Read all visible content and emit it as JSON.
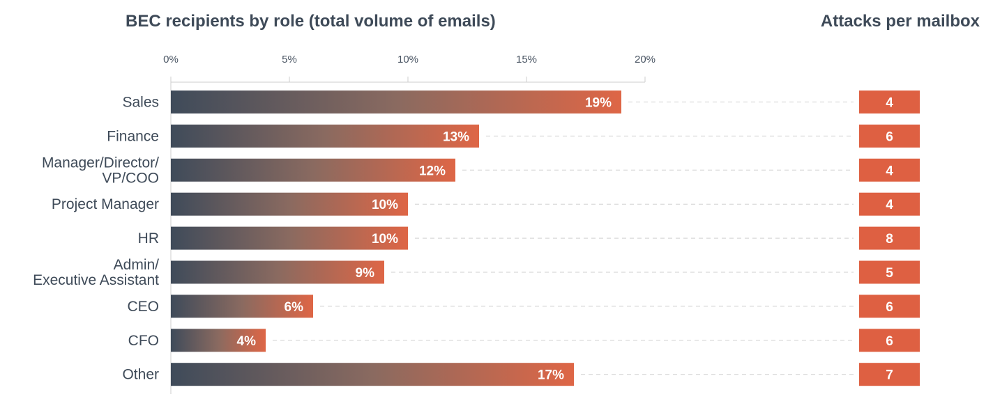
{
  "chart_data": {
    "type": "bar",
    "orientation": "horizontal",
    "title": "BEC recipients by role (total volume of emails)",
    "side_title": "Attacks per mailbox",
    "x_ticks": [
      "0%",
      "5%",
      "10%",
      "15%",
      "20%"
    ],
    "xlim": [
      0,
      20
    ],
    "categories": [
      [
        "Sales"
      ],
      [
        "Finance"
      ],
      [
        "Manager/Director/",
        "VP/COO"
      ],
      [
        "Project Manager"
      ],
      [
        "HR"
      ],
      [
        "Admin/",
        "Executive Assistant"
      ],
      [
        "CEO"
      ],
      [
        "CFO"
      ],
      [
        "Other"
      ]
    ],
    "values": [
      19,
      13,
      12,
      10,
      10,
      9,
      6,
      4,
      17
    ],
    "value_labels": [
      "19%",
      "13%",
      "12%",
      "10%",
      "10%",
      "9%",
      "6%",
      "4%",
      "17%"
    ],
    "attacks_per_mailbox": [
      "4",
      "6",
      "4",
      "4",
      "8",
      "5",
      "6",
      "6",
      "7"
    ],
    "grid": false,
    "colors": {
      "gradient_start": "#3f4b5a",
      "gradient_mid": "#8a6a60",
      "gradient_end": "#de6646",
      "box": "#de6042",
      "axis": "#cccccc",
      "dash": "#cfcfcf"
    }
  }
}
